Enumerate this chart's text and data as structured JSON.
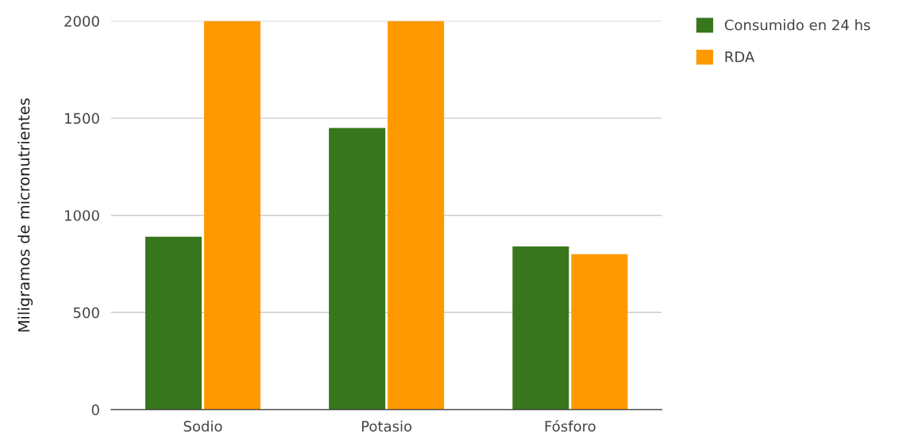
{
  "chart_data": {
    "type": "bar",
    "ylabel": "Miligramos de micronutrientes",
    "categories": [
      "Sodio",
      "Potasio",
      "Fósforo"
    ],
    "series": [
      {
        "name": "Consumido en 24 hs",
        "color": "#38761d",
        "values": [
          890,
          1450,
          840
        ]
      },
      {
        "name": "RDA",
        "color": "#ff9900",
        "values": [
          2000,
          2000,
          800
        ]
      }
    ],
    "ylim": [
      0,
      2000
    ],
    "yticks": [
      0,
      500,
      1000,
      1500,
      2000
    ],
    "grid": "y",
    "legend": "top right"
  }
}
